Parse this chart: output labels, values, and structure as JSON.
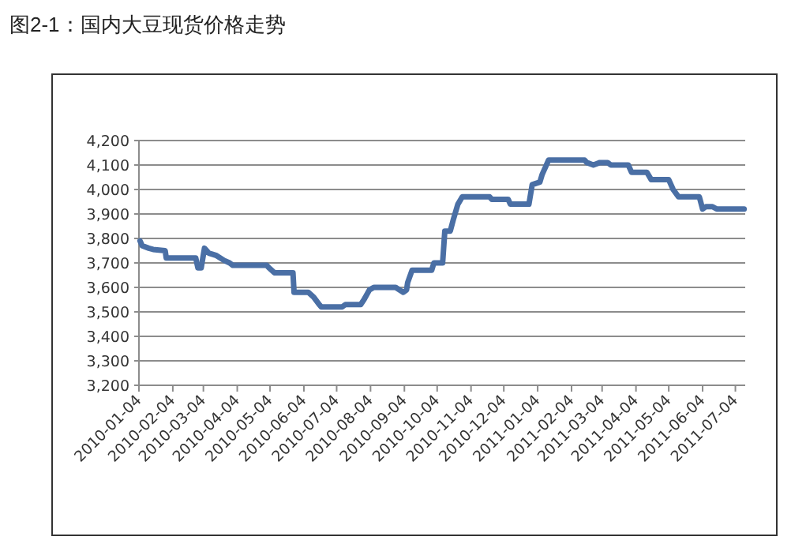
{
  "chart_data": {
    "type": "line",
    "title": "图2-1：国内大豆现货价格走势",
    "color": "#4a6fa5",
    "grid": "y",
    "x": [
      "2010-01-05",
      "2010-01-07",
      "2010-01-13",
      "2010-01-17",
      "2010-01-28",
      "2010-01-29",
      "2010-02-25",
      "2010-02-27",
      "2010-03-02",
      "2010-03-05",
      "2010-03-09",
      "2010-03-16",
      "2010-03-23",
      "2010-03-28",
      "2010-03-31",
      "2010-05-01",
      "2010-05-03",
      "2010-05-08",
      "2010-05-25",
      "2010-05-26",
      "2010-06-08",
      "2010-06-13",
      "2010-06-18",
      "2010-06-20",
      "2010-07-09",
      "2010-07-12",
      "2010-07-26",
      "2010-07-29",
      "2010-08-03",
      "2010-08-07",
      "2010-08-27",
      "2010-09-03",
      "2010-09-06",
      "2010-09-07",
      "2010-09-11",
      "2010-09-29",
      "2010-10-01",
      "2010-10-09",
      "2010-10-11",
      "2010-10-16",
      "2010-10-19",
      "2010-10-23",
      "2010-10-27",
      "2010-11-21",
      "2010-11-23",
      "2010-12-08",
      "2010-12-10",
      "2010-12-27",
      "2010-12-30",
      "2011-01-06",
      "2011-01-08",
      "2011-01-14",
      "2011-02-16",
      "2011-02-18",
      "2011-02-24",
      "2011-03-02",
      "2011-03-09",
      "2011-03-12",
      "2011-03-28",
      "2011-03-31",
      "2011-04-14",
      "2011-04-18",
      "2011-05-04",
      "2011-05-08",
      "2011-05-13",
      "2011-06-01",
      "2011-06-04",
      "2011-06-07",
      "2011-06-13",
      "2011-06-17",
      "2011-07-12"
    ],
    "values": [
      3790,
      3770,
      3760,
      3755,
      3750,
      3720,
      3720,
      3680,
      3680,
      3760,
      3740,
      3730,
      3710,
      3700,
      3690,
      3690,
      3680,
      3660,
      3660,
      3580,
      3580,
      3560,
      3530,
      3520,
      3520,
      3530,
      3530,
      3550,
      3590,
      3600,
      3600,
      3580,
      3590,
      3620,
      3670,
      3670,
      3700,
      3700,
      3830,
      3830,
      3880,
      3940,
      3970,
      3970,
      3960,
      3960,
      3940,
      3940,
      4020,
      4030,
      4060,
      4120,
      4120,
      4110,
      4100,
      4110,
      4110,
      4100,
      4100,
      4070,
      4070,
      4040,
      4040,
      4000,
      3970,
      3970,
      3920,
      3930,
      3930,
      3920,
      3920
    ],
    "xlim": [
      "2010-01-04",
      "2011-07-13"
    ],
    "xticks": [
      "2010-01-04",
      "2010-02-04",
      "2010-03-04",
      "2010-04-04",
      "2010-05-04",
      "2010-06-04",
      "2010-07-04",
      "2010-08-04",
      "2010-09-04",
      "2010-10-04",
      "2010-11-04",
      "2010-12-04",
      "2011-01-04",
      "2011-02-04",
      "2011-03-04",
      "2011-04-04",
      "2011-05-04",
      "2011-06-04",
      "2011-07-04"
    ],
    "ylim": [
      3200,
      4200
    ],
    "yticks": [
      {
        "value": 3200,
        "label": "3,200"
      },
      {
        "value": 3300,
        "label": "3,300"
      },
      {
        "value": 3400,
        "label": "3,400"
      },
      {
        "value": 3500,
        "label": "3,500"
      },
      {
        "value": 3600,
        "label": "3,600"
      },
      {
        "value": 3700,
        "label": "3,700"
      },
      {
        "value": 3800,
        "label": "3,800"
      },
      {
        "value": 3900,
        "label": "3,900"
      },
      {
        "value": 4000,
        "label": "4,000"
      },
      {
        "value": 4100,
        "label": "4,100"
      },
      {
        "value": 4200,
        "label": "4,200"
      }
    ]
  }
}
